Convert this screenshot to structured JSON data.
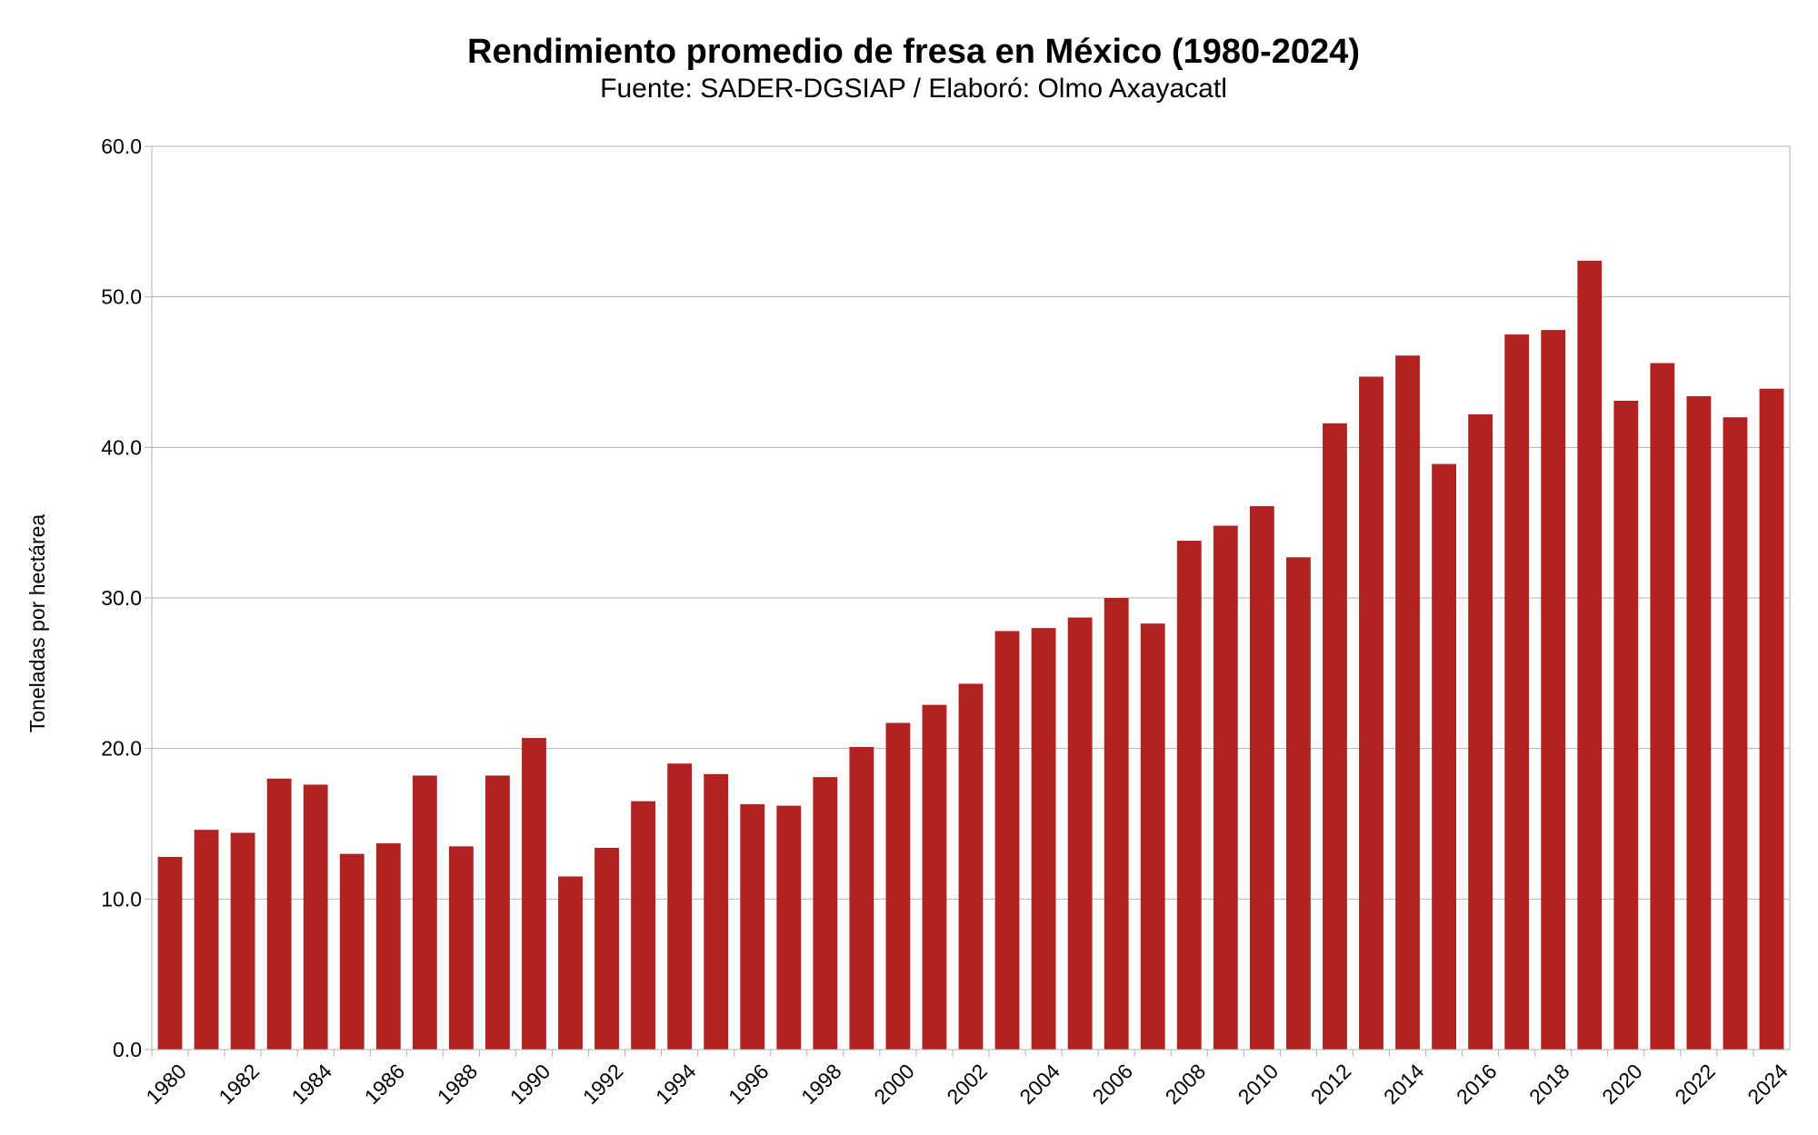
{
  "chart_data": {
    "type": "bar",
    "title": "Rendimiento promedio de fresa en México (1980-2024)",
    "subtitle": "Fuente: SADER-DGSIAP / Elaboró: Olmo Axayacatl",
    "xlabel": "",
    "ylabel": "Toneladas por hectárea",
    "ylim": [
      0,
      60
    ],
    "yticks": [
      "0.0",
      "10.0",
      "20.0",
      "30.0",
      "40.0",
      "50.0",
      "60.0"
    ],
    "grid": true,
    "bar_color": "#b22222",
    "categories": [
      "1980",
      "1981",
      "1982",
      "1983",
      "1984",
      "1985",
      "1986",
      "1987",
      "1988",
      "1989",
      "1990",
      "1991",
      "1992",
      "1993",
      "1994",
      "1995",
      "1996",
      "1997",
      "1998",
      "1999",
      "2000",
      "2001",
      "2002",
      "2003",
      "2004",
      "2005",
      "2006",
      "2007",
      "2008",
      "2009",
      "2010",
      "2011",
      "2012",
      "2013",
      "2014",
      "2015",
      "2016",
      "2017",
      "2018",
      "2019",
      "2020",
      "2021",
      "2022",
      "2023",
      "2024"
    ],
    "xtick_labels": [
      "1980",
      "1982",
      "1984",
      "1986",
      "1988",
      "1990",
      "1992",
      "1994",
      "1996",
      "1998",
      "2000",
      "2002",
      "2004",
      "2006",
      "2008",
      "2010",
      "2012",
      "2014",
      "2016",
      "2018",
      "2020",
      "2022",
      "2024"
    ],
    "values": [
      12.8,
      14.6,
      14.4,
      18.0,
      17.6,
      13.0,
      13.7,
      18.2,
      13.5,
      18.2,
      20.7,
      11.5,
      13.4,
      16.5,
      19.0,
      18.3,
      16.3,
      16.2,
      18.1,
      20.1,
      21.7,
      22.9,
      24.3,
      27.8,
      28.0,
      28.7,
      30.0,
      28.3,
      33.8,
      34.8,
      36.1,
      32.7,
      41.6,
      44.7,
      46.1,
      38.9,
      42.2,
      47.5,
      47.8,
      52.4,
      43.1,
      45.6,
      43.4,
      42.0,
      43.9
    ]
  }
}
